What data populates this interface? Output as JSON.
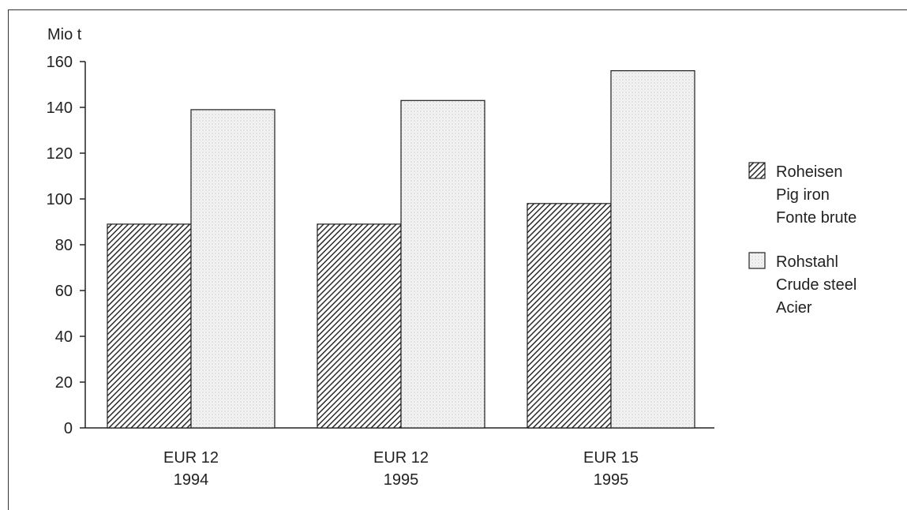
{
  "chart_data": {
    "type": "bar",
    "ylabel": "Mio t",
    "ylim": [
      0,
      160
    ],
    "yticks": [
      "0",
      "20",
      "40",
      "60",
      "80",
      "100",
      "120",
      "140",
      "160"
    ],
    "categories": [
      [
        "EUR 12",
        "1994"
      ],
      [
        "EUR 12",
        "1995"
      ],
      [
        "EUR 15",
        "1995"
      ]
    ],
    "series": [
      {
        "name": [
          "Roheisen",
          "Pig iron",
          "Fonte brute"
        ],
        "values": [
          89,
          89,
          98
        ],
        "color": "#3a3a3a",
        "pattern": "hatch"
      },
      {
        "name": [
          "Rohstahl",
          "Crude steel",
          "Acier"
        ],
        "values": [
          139,
          143,
          156
        ],
        "color": "#efefef",
        "pattern": "dots"
      }
    ],
    "legend_position": "right",
    "grid": false
  }
}
